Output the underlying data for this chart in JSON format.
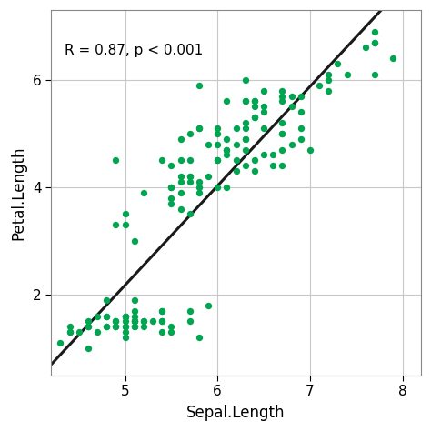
{
  "sepal_length": [
    5.1,
    4.9,
    4.7,
    4.6,
    5.0,
    5.4,
    4.6,
    5.0,
    4.4,
    4.9,
    5.4,
    4.8,
    4.8,
    4.3,
    5.8,
    5.7,
    5.4,
    5.1,
    5.7,
    5.1,
    5.4,
    5.1,
    4.6,
    5.1,
    4.8,
    5.0,
    5.0,
    5.2,
    5.2,
    4.7,
    4.8,
    5.4,
    5.2,
    5.5,
    4.9,
    5.0,
    5.5,
    4.9,
    4.4,
    5.1,
    5.0,
    4.5,
    4.4,
    5.0,
    5.1,
    4.8,
    5.1,
    4.6,
    5.3,
    5.0,
    7.0,
    6.4,
    6.9,
    5.5,
    6.5,
    5.7,
    6.3,
    4.9,
    6.6,
    5.2,
    5.0,
    5.9,
    6.0,
    6.1,
    5.6,
    6.7,
    5.6,
    5.8,
    6.2,
    5.6,
    5.9,
    6.1,
    6.3,
    6.1,
    6.4,
    6.6,
    6.8,
    6.7,
    6.0,
    5.7,
    5.5,
    5.5,
    5.8,
    6.0,
    5.4,
    6.0,
    6.7,
    6.3,
    5.6,
    5.5,
    5.5,
    6.1,
    5.8,
    5.0,
    5.6,
    5.7,
    5.7,
    6.2,
    5.1,
    5.7,
    6.3,
    5.8,
    7.1,
    6.3,
    6.5,
    7.6,
    4.9,
    7.3,
    6.7,
    7.2,
    6.5,
    6.4,
    6.8,
    5.7,
    5.8,
    6.4,
    6.5,
    7.7,
    7.7,
    6.0,
    6.9,
    5.6,
    7.7,
    6.3,
    6.7,
    7.2,
    6.2,
    6.1,
    6.4,
    7.2,
    7.4,
    7.9,
    6.4,
    6.3,
    6.1,
    7.7,
    6.3,
    6.4,
    6.0,
    6.9,
    6.7,
    6.9,
    5.8,
    6.8,
    6.7,
    6.7,
    6.3,
    6.5,
    6.2,
    5.9
  ],
  "petal_length": [
    1.4,
    1.4,
    1.3,
    1.5,
    1.4,
    1.7,
    1.4,
    1.5,
    1.4,
    1.5,
    1.5,
    1.6,
    1.4,
    1.1,
    1.2,
    1.5,
    1.3,
    1.4,
    1.7,
    1.5,
    1.7,
    1.5,
    1.0,
    1.7,
    1.9,
    1.6,
    1.6,
    1.5,
    1.4,
    1.6,
    1.6,
    1.5,
    1.5,
    1.4,
    1.5,
    1.2,
    1.3,
    1.4,
    1.3,
    1.5,
    1.3,
    1.3,
    1.3,
    1.6,
    1.9,
    1.4,
    1.6,
    1.4,
    1.5,
    1.4,
    4.7,
    4.5,
    4.9,
    4.0,
    4.6,
    4.5,
    4.7,
    3.3,
    4.6,
    3.9,
    3.5,
    4.2,
    4.0,
    4.7,
    3.6,
    4.4,
    4.5,
    4.1,
    4.5,
    3.9,
    4.8,
    4.0,
    4.9,
    4.7,
    4.3,
    4.4,
    4.8,
    5.0,
    4.5,
    3.5,
    3.8,
    3.7,
    3.9,
    5.1,
    4.5,
    4.5,
    4.7,
    4.4,
    4.1,
    4.0,
    4.4,
    4.6,
    4.0,
    3.3,
    4.2,
    4.2,
    4.2,
    4.3,
    3.0,
    4.1,
    6.0,
    5.1,
    5.9,
    5.6,
    5.8,
    6.6,
    4.5,
    6.3,
    5.8,
    6.1,
    5.1,
    5.3,
    5.5,
    5.0,
    5.1,
    5.3,
    5.5,
    6.7,
    6.9,
    5.0,
    5.7,
    4.9,
    6.7,
    4.9,
    5.7,
    6.0,
    4.8,
    4.9,
    5.6,
    5.8,
    6.1,
    6.4,
    5.6,
    5.1,
    5.6,
    6.1,
    5.6,
    5.5,
    4.8,
    5.4,
    5.6,
    5.1,
    5.9,
    5.7,
    5.2,
    5.0,
    5.2,
    5.4,
    5.1,
    1.8
  ],
  "dot_color": "#00a550",
  "line_color": "#1a1a1a",
  "annotation": "R = 0.87, p < 0.001",
  "xlabel": "Sepal.Length",
  "ylabel": "Petal.Length",
  "xlim": [
    4.2,
    8.2
  ],
  "ylim": [
    0.5,
    7.3
  ],
  "xticks": [
    5,
    6,
    7,
    8
  ],
  "yticks": [
    2,
    4,
    6
  ],
  "background_color": "#ffffff",
  "grid_color": "#c8c8c8",
  "dot_size": 28,
  "dot_alpha": 1.0,
  "line_width": 2.2,
  "annotation_fontsize": 11,
  "tick_fontsize": 11,
  "label_fontsize": 12
}
